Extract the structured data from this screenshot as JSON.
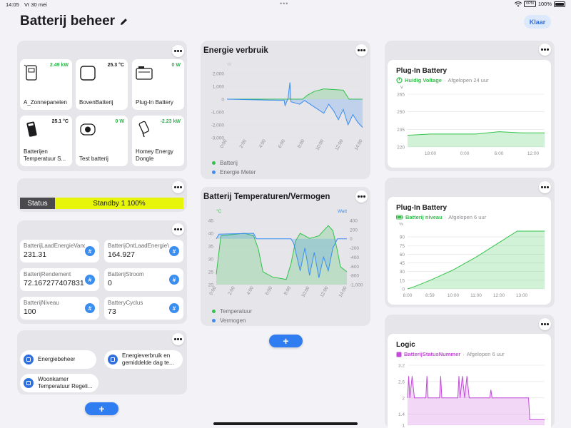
{
  "statusbar": {
    "time": "14:05",
    "date": "Vr 30 mei",
    "vpn": "VPN",
    "battery": "100%"
  },
  "page": {
    "title": "Batterij beheer",
    "done_label": "Klaar",
    "edit_icon": "pencil-icon"
  },
  "devices": [
    {
      "name": "A_Zonnepanelen",
      "value": "2.49 kW",
      "icon": "solar-inverter-icon",
      "value_color": "#2fb24c"
    },
    {
      "name": "BovenBatterij",
      "value": "25.3 °C",
      "icon": "battery-box-icon",
      "value_color": "#1c1c1e"
    },
    {
      "name": "Plug-In Battery",
      "value": "0 W",
      "icon": "plug-in-battery-icon",
      "value_color": "#2fb24c"
    },
    {
      "name": "Batterijen Temperatuur Sensor",
      "value": "25.1 °C",
      "icon": "temperature-sensor-icon",
      "value_color": "#1c1c1e"
    },
    {
      "name": "Test batterij",
      "value": "0 W",
      "icon": "socket-icon",
      "value_color": "#2fb24c"
    },
    {
      "name": "Homey Energy Dongle",
      "value": "-2.23 kW",
      "icon": "energy-dongle-icon",
      "value_color": "#2fb24c"
    }
  ],
  "status": {
    "label": "Status",
    "value": "Standby 1 100%",
    "color": "#e6f50a"
  },
  "variables": [
    {
      "name": "BatterijLaadEnergieVandaag",
      "value": "231.31"
    },
    {
      "name": "BatterijOntLaadEnergieVandaag",
      "value": "164.927"
    },
    {
      "name": "BatterijRendement",
      "value": "72.167277407831"
    },
    {
      "name": "BatterijStroom",
      "value": "0"
    },
    {
      "name": "BatterijNiveau",
      "value": "100"
    },
    {
      "name": "BatteryCyclus",
      "value": "73"
    }
  ],
  "flows": [
    {
      "label": "Energiebeheer"
    },
    {
      "label": "Energieverbruik en gemiddelde dag temperatuur"
    },
    {
      "label": "Woonkamer Temperatuur Regeling"
    }
  ],
  "add_label": "+",
  "energy_chart": {
    "title": "Energie verbruik",
    "unit": "W",
    "legend": [
      "Batterij",
      "Energie Meter"
    ],
    "colors": {
      "battery": "#33c24a",
      "meter": "#3b8ef0"
    }
  },
  "temp_chart": {
    "title": "Batterij Temperaturen/Vermogen",
    "left_unit": "°C",
    "right_unit": "Watt",
    "legend": [
      "Temperatuur",
      "Vermogen"
    ]
  },
  "panels": {
    "voltage": {
      "title": "Plug-In Battery",
      "metric": "Huidig Voltage",
      "period": "Afgelopen 24 uur",
      "unit": "V"
    },
    "level": {
      "title": "Plug-In Battery",
      "metric": "Batterij niveau",
      "period": "Afgelopen 6 uur",
      "unit": "%"
    },
    "logic": {
      "title": "Logic",
      "metric": "BatterijStatusNummer",
      "period": "Afgelopen 6 uur"
    }
  },
  "chart_data": [
    {
      "type": "area",
      "title": "Energie verbruik",
      "x": [
        "0:00",
        "2:00",
        "4:00",
        "6:00",
        "8:00",
        "10:00",
        "12:00",
        "14:00"
      ],
      "ylabel": "W",
      "ylim": [
        -3000,
        2000
      ],
      "yticks": [
        "2,000",
        "1,000",
        "0",
        "-1,000",
        "-2,000",
        "-3,000"
      ],
      "series": [
        {
          "name": "Batterij",
          "color": "#33c24a",
          "points": [
            [
              0,
              0
            ],
            [
              7.8,
              0
            ],
            [
              8.3,
              300
            ],
            [
              9,
              600
            ],
            [
              10,
              800
            ],
            [
              11,
              750
            ],
            [
              12,
              700
            ],
            [
              12.6,
              0
            ],
            [
              14,
              0
            ]
          ]
        },
        {
          "name": "Energie Meter",
          "color": "#3b8ef0",
          "points": [
            [
              0,
              0
            ],
            [
              5.9,
              -100
            ],
            [
              6,
              -500
            ],
            [
              6.3,
              50
            ],
            [
              6.5,
              1300
            ],
            [
              6.6,
              -200
            ],
            [
              7.5,
              -400
            ],
            [
              8,
              -100
            ],
            [
              9,
              -600
            ],
            [
              10,
              -1100
            ],
            [
              10.5,
              -400
            ],
            [
              11,
              -900
            ],
            [
              11.5,
              -1600
            ],
            [
              12,
              -800
            ],
            [
              12.5,
              -2000
            ],
            [
              13,
              -1200
            ],
            [
              13.5,
              -1800
            ],
            [
              14,
              -2200
            ]
          ]
        }
      ],
      "legend_position": "bottom-left"
    },
    {
      "type": "area",
      "title": "Batterij Temperaturen/Vermogen",
      "x": [
        "0:00",
        "2:00",
        "4:00",
        "6:00",
        "8:00",
        "10:00",
        "12:00",
        "14:00"
      ],
      "ylim_left": [
        20,
        45
      ],
      "ylim_right": [
        -1000,
        400
      ],
      "yticks_left": [
        "45",
        "40",
        "35",
        "30",
        "25",
        "20"
      ],
      "yticks_right": [
        "400",
        "200",
        "0",
        "-200",
        "-400",
        "-600",
        "-800",
        "-1,000"
      ],
      "series": [
        {
          "name": "Temperatuur",
          "color": "#33c24a",
          "axis": "left",
          "points": [
            [
              0,
              24
            ],
            [
              0.5,
              39
            ],
            [
              3,
              40
            ],
            [
              4,
              39
            ],
            [
              4.5,
              34
            ],
            [
              5,
              25
            ],
            [
              6,
              23
            ],
            [
              7.5,
              22
            ],
            [
              8,
              28
            ],
            [
              8.5,
              37
            ],
            [
              9,
              40
            ],
            [
              10,
              38
            ],
            [
              11,
              39
            ],
            [
              12,
              43
            ],
            [
              12.5,
              41
            ],
            [
              13,
              33
            ],
            [
              13.3,
              27
            ],
            [
              14,
              25
            ]
          ]
        },
        {
          "name": "Vermogen",
          "color": "#3b8ef0",
          "axis": "right",
          "points": [
            [
              0,
              0
            ],
            [
              0.3,
              100
            ],
            [
              4,
              120
            ],
            [
              4.3,
              0
            ],
            [
              8,
              0
            ],
            [
              8.3,
              -100
            ],
            [
              9,
              -700
            ],
            [
              9.5,
              -200
            ],
            [
              10,
              -800
            ],
            [
              10.5,
              -300
            ],
            [
              11,
              -850
            ],
            [
              11.5,
              -400
            ],
            [
              12,
              -700
            ],
            [
              12.5,
              -200
            ],
            [
              13,
              0
            ],
            [
              14,
              0
            ]
          ]
        }
      ],
      "legend_position": "bottom-left"
    },
    {
      "type": "area",
      "title": "Plug-In Battery",
      "subtitle": "Huidig Voltage",
      "x": [
        "18:00",
        "0:00",
        "6:00",
        "12:00"
      ],
      "ylabel": "V",
      "ylim": [
        220,
        265
      ],
      "yticks": [
        "265",
        "250",
        "235",
        "220"
      ],
      "series": [
        {
          "name": "Huidig Voltage",
          "color": "#33c24a",
          "points": [
            [
              0,
              230
            ],
            [
              4,
              231
            ],
            [
              8,
              231
            ],
            [
              12,
              231
            ],
            [
              16,
              233
            ],
            [
              20,
              232
            ],
            [
              24,
              232
            ]
          ]
        }
      ]
    },
    {
      "type": "area",
      "title": "Plug-In Battery",
      "subtitle": "Batterij niveau",
      "x": [
        "8:00",
        "8:59",
        "10:00",
        "11:00",
        "12:00",
        "13:00"
      ],
      "ylabel": "%",
      "ylim": [
        0,
        100
      ],
      "yticks": [
        "90",
        "75",
        "60",
        "45",
        "30",
        "15",
        "0"
      ],
      "series": [
        {
          "name": "Batterij niveau",
          "color": "#33c24a",
          "points": [
            [
              8,
              0
            ],
            [
              8.3,
              4
            ],
            [
              9,
              15
            ],
            [
              10,
              33
            ],
            [
              11,
              55
            ],
            [
              12,
              80
            ],
            [
              12.8,
              100
            ],
            [
              14,
              100
            ]
          ]
        }
      ]
    },
    {
      "type": "line",
      "title": "Logic",
      "subtitle": "BatterijStatusNummer",
      "ylim": [
        1,
        3.2
      ],
      "yticks": [
        "3.2",
        "2.6",
        "2",
        "1.4",
        "1"
      ],
      "series": [
        {
          "name": "BatterijStatusNummer",
          "color": "#c24ad9",
          "points": [
            [
              8,
              2
            ],
            [
              8.05,
              2.8
            ],
            [
              8.1,
              2
            ],
            [
              8.2,
              2.8
            ],
            [
              8.3,
              2
            ],
            [
              8.8,
              2
            ],
            [
              8.85,
              2.8
            ],
            [
              8.9,
              2
            ],
            [
              9.4,
              2
            ],
            [
              9.45,
              2.8
            ],
            [
              9.5,
              2
            ],
            [
              10.2,
              2
            ],
            [
              10.25,
              2.8
            ],
            [
              10.3,
              2
            ],
            [
              10.4,
              2.8
            ],
            [
              10.5,
              2
            ],
            [
              10.6,
              2.8
            ],
            [
              10.7,
              2
            ],
            [
              11.6,
              2
            ],
            [
              11.65,
              2.3
            ],
            [
              11.7,
              2
            ],
            [
              13.3,
              2
            ],
            [
              13.35,
              1.2
            ],
            [
              14,
              1.2
            ]
          ]
        }
      ]
    }
  ]
}
